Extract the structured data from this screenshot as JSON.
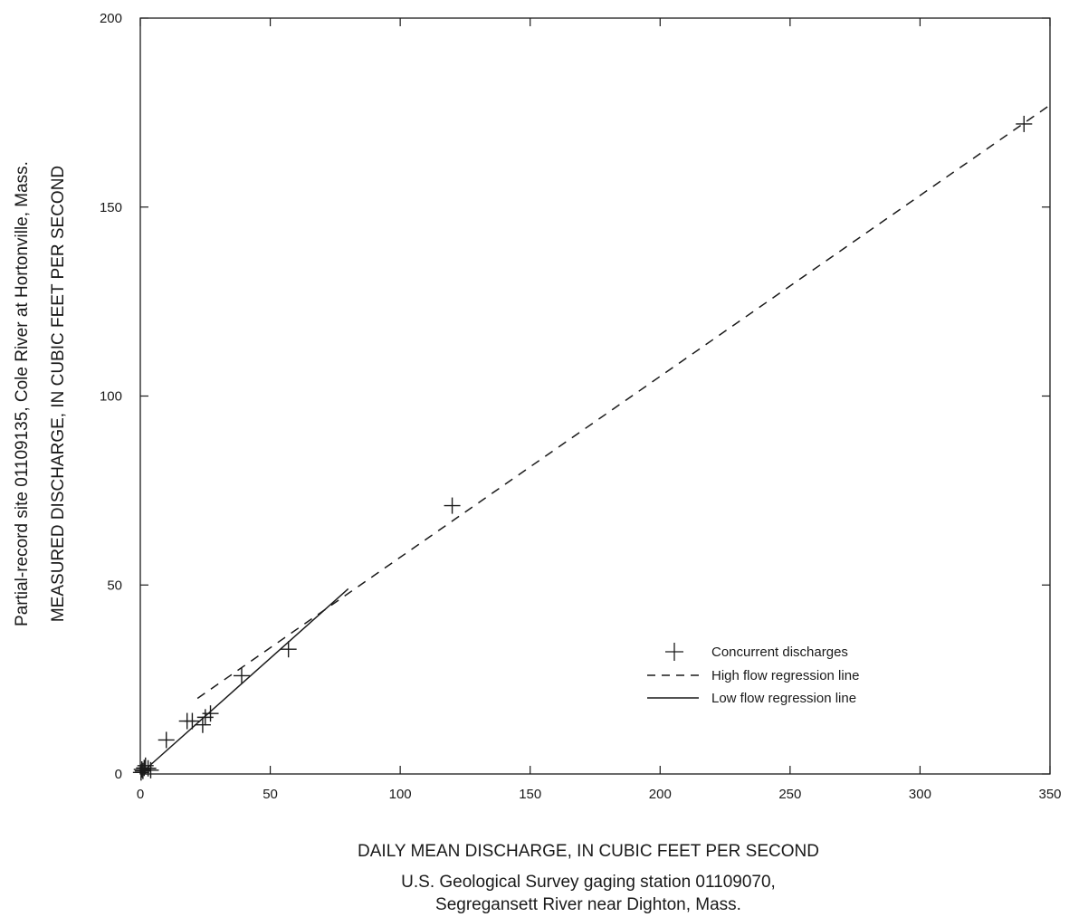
{
  "chart_data": {
    "type": "scatter",
    "xlabel": "DAILY MEAN DISCHARGE, IN CUBIC FEET PER SECOND",
    "xlabel_sub": [
      "U.S. Geological Survey gaging station 01109070,",
      "Segregansett River near Dighton, Mass."
    ],
    "ylabel": "MEASURED DISCHARGE, IN CUBIC FEET PER SECOND",
    "ylabel_sub": "Partial-record site 01109135, Cole River at Hortonville, Mass.",
    "xlim": [
      0,
      350
    ],
    "ylim": [
      0,
      200
    ],
    "x_ticks": [
      0,
      50,
      100,
      150,
      200,
      250,
      300,
      350
    ],
    "y_ticks": [
      0,
      50,
      100,
      150,
      200
    ],
    "grid": false,
    "legend_position": "lower-right",
    "points": [
      {
        "x": 0.3,
        "y": 0.4
      },
      {
        "x": 0.6,
        "y": 1.2
      },
      {
        "x": 1.0,
        "y": 0.8
      },
      {
        "x": 1.5,
        "y": 1.6
      },
      {
        "x": 2.0,
        "y": 2.2
      },
      {
        "x": 3.0,
        "y": 1.5
      },
      {
        "x": 4.0,
        "y": 1.0
      },
      {
        "x": 10,
        "y": 9
      },
      {
        "x": 18,
        "y": 14
      },
      {
        "x": 20,
        "y": 14
      },
      {
        "x": 24,
        "y": 13
      },
      {
        "x": 25,
        "y": 15
      },
      {
        "x": 27,
        "y": 16
      },
      {
        "x": 39,
        "y": 26
      },
      {
        "x": 57,
        "y": 33
      },
      {
        "x": 120,
        "y": 71
      },
      {
        "x": 340,
        "y": 172
      }
    ],
    "series": [
      {
        "name": "Concurrent discharges",
        "kind": "points",
        "marker": "plus"
      },
      {
        "name": "High flow regression line",
        "kind": "line",
        "style": "dashed",
        "x": [
          22,
          350
        ],
        "y": [
          20,
          177
        ]
      },
      {
        "name": "Low flow regression line",
        "kind": "line",
        "style": "solid",
        "x": [
          0,
          80
        ],
        "y": [
          0,
          49
        ]
      }
    ],
    "colors": {
      "ink": "#1a1a1a",
      "background": "#ffffff"
    }
  }
}
